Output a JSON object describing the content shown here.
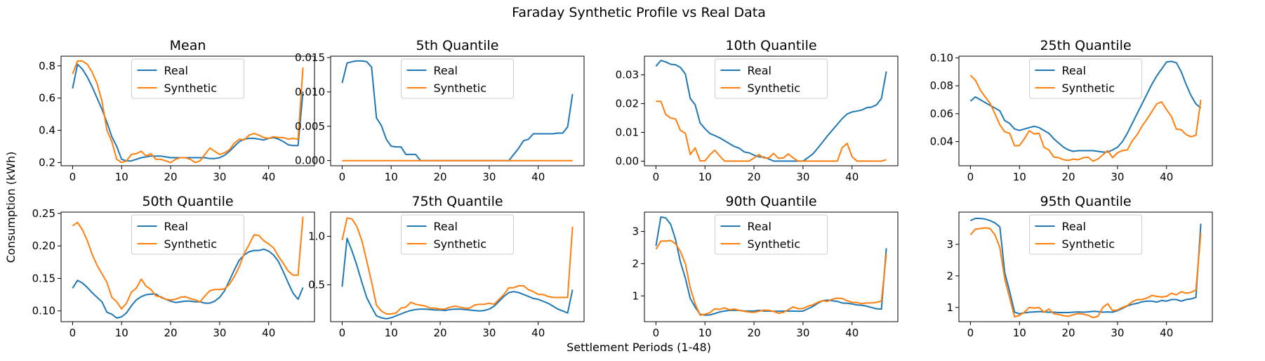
{
  "figure": {
    "suptitle": "Faraday Synthetic Profile vs Real Data",
    "xlabel": "Settlement Periods (1-48)",
    "ylabel": "Consumption (kWh)"
  },
  "colors": {
    "real": "#1f77b4",
    "synthetic": "#ff7f0e"
  },
  "chart_data": [
    {
      "type": "line",
      "title": "Mean",
      "xlim": [
        -2.35,
        49.35
      ],
      "ylim": [
        0.18,
        0.86
      ],
      "xticks": [
        0,
        10,
        20,
        30,
        40
      ],
      "yticks": [
        0.2,
        0.4,
        0.6,
        0.8
      ],
      "ytick_labels": [
        "0.2",
        "0.4",
        "0.6",
        "0.8"
      ],
      "legend": "upper center",
      "series": [
        {
          "name": "Real",
          "values": [
            0.66,
            0.81,
            0.78,
            0.73,
            0.67,
            0.6,
            0.53,
            0.45,
            0.36,
            0.3,
            0.22,
            0.21,
            0.21,
            0.22,
            0.23,
            0.235,
            0.24,
            0.24,
            0.24,
            0.235,
            0.23,
            0.23,
            0.23,
            0.23,
            0.23,
            0.23,
            0.23,
            0.23,
            0.225,
            0.225,
            0.23,
            0.245,
            0.27,
            0.3,
            0.33,
            0.345,
            0.35,
            0.35,
            0.345,
            0.34,
            0.35,
            0.355,
            0.345,
            0.33,
            0.31,
            0.305,
            0.305,
            0.64
          ]
        },
        {
          "name": "Synthetic",
          "values": [
            0.75,
            0.83,
            0.83,
            0.81,
            0.76,
            0.69,
            0.58,
            0.4,
            0.33,
            0.22,
            0.2,
            0.21,
            0.25,
            0.255,
            0.27,
            0.24,
            0.255,
            0.22,
            0.22,
            0.21,
            0.2,
            0.22,
            0.23,
            0.23,
            0.22,
            0.2,
            0.21,
            0.25,
            0.29,
            0.27,
            0.25,
            0.26,
            0.28,
            0.32,
            0.345,
            0.34,
            0.37,
            0.38,
            0.37,
            0.355,
            0.35,
            0.36,
            0.355,
            0.355,
            0.345,
            0.35,
            0.345,
            0.79
          ]
        }
      ]
    },
    {
      "type": "line",
      "title": "5th Quantile",
      "xlim": [
        -2.35,
        49.35
      ],
      "ylim": [
        -0.00075,
        0.0152
      ],
      "xticks": [
        0,
        10,
        20,
        30,
        40
      ],
      "yticks": [
        0.0,
        0.005,
        0.01,
        0.015
      ],
      "ytick_labels": [
        "0.000",
        "0.005",
        "0.010",
        "0.015"
      ],
      "legend": "upper center",
      "series": [
        {
          "name": "Real",
          "values": [
            0.0113,
            0.0142,
            0.0144,
            0.0145,
            0.0145,
            0.0144,
            0.0136,
            0.0062,
            0.0051,
            0.0031,
            0.0021,
            0.002,
            0.002,
            0.0009,
            0.0009,
            0.0009,
            0.0,
            0.0,
            0.0,
            0.0,
            0.0,
            0.0,
            0.0,
            0.0,
            0.0,
            0.0,
            0.0,
            0.0,
            0.0,
            0.0,
            0.0,
            0.0,
            0.0,
            0.0,
            0.0,
            0.0009,
            0.0018,
            0.0029,
            0.0031,
            0.0039,
            0.0039,
            0.0039,
            0.0039,
            0.0039,
            0.004,
            0.004,
            0.0049,
            0.0097
          ]
        },
        {
          "name": "Synthetic",
          "values": [
            0.0,
            0.0,
            0.0,
            0.0,
            0.0,
            0.0,
            0.0,
            0.0,
            0.0,
            0.0,
            0.0,
            0.0,
            0.0,
            0.0,
            0.0,
            0.0,
            0.0,
            0.0,
            0.0,
            0.0,
            0.0,
            0.0,
            0.0,
            0.0,
            0.0,
            0.0,
            0.0,
            0.0,
            0.0,
            0.0,
            0.0,
            0.0,
            0.0,
            0.0,
            0.0,
            0.0,
            0.0,
            0.0,
            0.0,
            0.0,
            0.0,
            0.0,
            0.0,
            0.0,
            0.0,
            0.0,
            0.0,
            0.0
          ]
        }
      ]
    },
    {
      "type": "line",
      "title": "10th Quantile",
      "xlim": [
        -2.35,
        49.35
      ],
      "ylim": [
        -0.0016,
        0.0365
      ],
      "xticks": [
        0,
        10,
        20,
        30,
        40
      ],
      "yticks": [
        0.0,
        0.01,
        0.02,
        0.03
      ],
      "ytick_labels": [
        "0.00",
        "0.01",
        "0.02",
        "0.03"
      ],
      "legend": "upper center",
      "series": [
        {
          "name": "Real",
          "values": [
            0.033,
            0.035,
            0.0345,
            0.0337,
            0.0335,
            0.0326,
            0.0303,
            0.0218,
            0.0196,
            0.0133,
            0.0113,
            0.0096,
            0.0089,
            0.0081,
            0.0071,
            0.0061,
            0.0051,
            0.0045,
            0.0032,
            0.0029,
            0.0021,
            0.0015,
            0.0014,
            0.0008,
            0.0,
            0.0,
            0.0,
            0.0,
            0.0,
            0.0,
            0.0,
            0.0012,
            0.0025,
            0.0045,
            0.0066,
            0.0088,
            0.0108,
            0.0128,
            0.0148,
            0.0164,
            0.0171,
            0.0174,
            0.0178,
            0.0186,
            0.0188,
            0.0196,
            0.0218,
            0.0312
          ]
        },
        {
          "name": "Synthetic",
          "values": [
            0.0208,
            0.0208,
            0.0162,
            0.015,
            0.0147,
            0.0107,
            0.0097,
            0.0023,
            0.0046,
            0.0001,
            0.0001,
            0.0022,
            0.0038,
            0.0018,
            0.0,
            0.0,
            0.0,
            0.0,
            0.0,
            0.0,
            0.0011,
            0.0023,
            0.0011,
            0.0011,
            0.0027,
            0.001,
            0.0011,
            0.0025,
            0.0011,
            0.0,
            0.0,
            0.0,
            0.0,
            0.0,
            0.0,
            0.0,
            0.0,
            0.0,
            0.0047,
            0.0062,
            0.0016,
            0.0,
            0.0,
            0.0,
            0.0,
            0.0,
            0.0,
            0.0005
          ]
        }
      ]
    },
    {
      "type": "line",
      "title": "25th Quantile",
      "xlim": [
        -2.35,
        49.35
      ],
      "ylim": [
        0.0227,
        0.1012
      ],
      "xticks": [
        0,
        10,
        20,
        30,
        40
      ],
      "yticks": [
        0.04,
        0.06,
        0.08,
        0.1
      ],
      "ytick_labels": [
        "0.04",
        "0.06",
        "0.08",
        "0.10"
      ],
      "legend": "upper center",
      "series": [
        {
          "name": "Real",
          "values": [
            0.069,
            0.072,
            0.07,
            0.068,
            0.066,
            0.064,
            0.062,
            0.055,
            0.053,
            0.049,
            0.048,
            0.049,
            0.05,
            0.051,
            0.05,
            0.048,
            0.046,
            0.042,
            0.039,
            0.036,
            0.034,
            0.033,
            0.0335,
            0.0335,
            0.0335,
            0.0335,
            0.033,
            0.0325,
            0.0325,
            0.034,
            0.036,
            0.04,
            0.046,
            0.053,
            0.06,
            0.067,
            0.074,
            0.081,
            0.087,
            0.092,
            0.097,
            0.0975,
            0.0965,
            0.09,
            0.081,
            0.073,
            0.067,
            0.064
          ]
        },
        {
          "name": "Synthetic",
          "values": [
            0.0875,
            0.084,
            0.077,
            0.072,
            0.0675,
            0.06,
            0.052,
            0.047,
            0.046,
            0.037,
            0.0372,
            0.042,
            0.0478,
            0.0455,
            0.046,
            0.036,
            0.034,
            0.029,
            0.0285,
            0.027,
            0.0265,
            0.0275,
            0.027,
            0.0285,
            0.0288,
            0.026,
            0.0275,
            0.0305,
            0.0335,
            0.0285,
            0.032,
            0.0336,
            0.034,
            0.0405,
            0.045,
            0.051,
            0.056,
            0.0615,
            0.067,
            0.0685,
            0.063,
            0.058,
            0.049,
            0.0485,
            0.045,
            0.0435,
            0.0445,
            0.07
          ]
        }
      ]
    },
    {
      "type": "line",
      "title": "50th Quantile",
      "xlim": [
        -2.35,
        49.35
      ],
      "ylim": [
        0.0835,
        0.252
      ],
      "xticks": [
        0,
        10,
        20,
        30,
        40
      ],
      "yticks": [
        0.1,
        0.15,
        0.2,
        0.25
      ],
      "ytick_labels": [
        "0.10",
        "0.15",
        "0.20",
        "0.25"
      ],
      "legend": "upper center",
      "series": [
        {
          "name": "Real",
          "values": [
            0.135,
            0.147,
            0.143,
            0.136,
            0.128,
            0.121,
            0.114,
            0.098,
            0.095,
            0.089,
            0.091,
            0.097,
            0.108,
            0.117,
            0.122,
            0.125,
            0.126,
            0.126,
            0.121,
            0.118,
            0.115,
            0.113,
            0.114,
            0.115,
            0.115,
            0.114,
            0.114,
            0.112,
            0.112,
            0.115,
            0.121,
            0.131,
            0.147,
            0.163,
            0.178,
            0.186,
            0.191,
            0.193,
            0.193,
            0.195,
            0.192,
            0.186,
            0.176,
            0.16,
            0.143,
            0.127,
            0.118,
            0.136
          ]
        },
        {
          "name": "Synthetic",
          "values": [
            0.231,
            0.236,
            0.225,
            0.208,
            0.187,
            0.17,
            0.157,
            0.144,
            0.121,
            0.114,
            0.103,
            0.112,
            0.129,
            0.135,
            0.149,
            0.138,
            0.133,
            0.123,
            0.122,
            0.118,
            0.117,
            0.118,
            0.121,
            0.122,
            0.119,
            0.117,
            0.114,
            0.123,
            0.131,
            0.133,
            0.133,
            0.134,
            0.141,
            0.153,
            0.168,
            0.188,
            0.202,
            0.217,
            0.216,
            0.208,
            0.203,
            0.197,
            0.184,
            0.173,
            0.161,
            0.155,
            0.155,
            0.245
          ]
        }
      ]
    },
    {
      "type": "line",
      "title": "75th Quantile",
      "xlim": [
        -2.35,
        49.35
      ],
      "ylim": [
        0.12,
        1.25
      ],
      "xticks": [
        0,
        10,
        20,
        30,
        40
      ],
      "yticks": [
        0.5,
        1.0
      ],
      "ytick_labels": [
        "0.5",
        "1.0"
      ],
      "legend": "upper center",
      "series": [
        {
          "name": "Real",
          "values": [
            0.48,
            0.98,
            0.85,
            0.7,
            0.53,
            0.37,
            0.27,
            0.18,
            0.16,
            0.15,
            0.16,
            0.18,
            0.2,
            0.22,
            0.235,
            0.245,
            0.25,
            0.25,
            0.245,
            0.24,
            0.24,
            0.235,
            0.245,
            0.25,
            0.25,
            0.245,
            0.24,
            0.235,
            0.23,
            0.235,
            0.25,
            0.28,
            0.33,
            0.38,
            0.42,
            0.43,
            0.42,
            0.4,
            0.38,
            0.36,
            0.35,
            0.33,
            0.31,
            0.28,
            0.25,
            0.23,
            0.21,
            0.45
          ]
        },
        {
          "name": "Synthetic",
          "values": [
            0.96,
            1.19,
            1.18,
            1.1,
            0.96,
            0.75,
            0.53,
            0.29,
            0.23,
            0.2,
            0.2,
            0.21,
            0.26,
            0.27,
            0.32,
            0.3,
            0.29,
            0.28,
            0.26,
            0.26,
            0.25,
            0.25,
            0.27,
            0.28,
            0.27,
            0.26,
            0.26,
            0.29,
            0.3,
            0.3,
            0.31,
            0.3,
            0.35,
            0.4,
            0.47,
            0.47,
            0.49,
            0.49,
            0.45,
            0.43,
            0.4,
            0.4,
            0.38,
            0.37,
            0.37,
            0.37,
            0.37,
            1.1
          ]
        }
      ]
    },
    {
      "type": "line",
      "title": "90th Quantile",
      "xlim": [
        -2.35,
        49.35
      ],
      "ylim": [
        0.2,
        3.6
      ],
      "xticks": [
        0,
        10,
        20,
        30,
        40
      ],
      "yticks": [
        1,
        2,
        3
      ],
      "ytick_labels": [
        "1",
        "2",
        "3"
      ],
      "legend": "upper center",
      "series": [
        {
          "name": "Real",
          "values": [
            2.55,
            3.45,
            3.42,
            3.22,
            2.75,
            2.05,
            1.55,
            0.92,
            0.65,
            0.43,
            0.4,
            0.41,
            0.45,
            0.5,
            0.53,
            0.55,
            0.55,
            0.55,
            0.53,
            0.53,
            0.53,
            0.55,
            0.53,
            0.53,
            0.52,
            0.52,
            0.53,
            0.53,
            0.53,
            0.52,
            0.53,
            0.6,
            0.67,
            0.77,
            0.85,
            0.87,
            0.85,
            0.83,
            0.78,
            0.77,
            0.75,
            0.72,
            0.71,
            0.68,
            0.64,
            0.6,
            0.59,
            2.48
          ]
        },
        {
          "name": "Synthetic",
          "values": [
            2.45,
            2.7,
            2.7,
            2.72,
            2.62,
            2.38,
            2.0,
            1.25,
            0.75,
            0.4,
            0.43,
            0.48,
            0.6,
            0.58,
            0.63,
            0.57,
            0.59,
            0.55,
            0.52,
            0.5,
            0.49,
            0.52,
            0.56,
            0.55,
            0.52,
            0.46,
            0.49,
            0.57,
            0.66,
            0.6,
            0.61,
            0.68,
            0.72,
            0.8,
            0.85,
            0.83,
            0.9,
            0.93,
            0.92,
            0.85,
            0.8,
            0.79,
            0.76,
            0.78,
            0.78,
            0.8,
            0.84,
            2.3
          ]
        }
      ]
    },
    {
      "type": "line",
      "title": "95th Quantile",
      "xlim": [
        -2.35,
        49.35
      ],
      "ylim": [
        0.55,
        4.02
      ],
      "xticks": [
        0,
        10,
        20,
        30,
        40
      ],
      "yticks": [
        1,
        2,
        3
      ],
      "ytick_labels": [
        "1",
        "2",
        "3"
      ],
      "legend": "upper center",
      "series": [
        {
          "name": "Real",
          "values": [
            3.75,
            3.82,
            3.82,
            3.8,
            3.75,
            3.68,
            3.55,
            2.1,
            1.5,
            0.85,
            0.8,
            0.83,
            0.85,
            0.86,
            0.87,
            0.86,
            0.85,
            0.85,
            0.84,
            0.84,
            0.84,
            0.85,
            0.86,
            0.85,
            0.86,
            0.88,
            0.87,
            0.85,
            0.86,
            0.85,
            0.9,
            0.97,
            1.05,
            1.1,
            1.13,
            1.18,
            1.2,
            1.2,
            1.17,
            1.22,
            1.2,
            1.25,
            1.25,
            1.2,
            1.25,
            1.27,
            1.32,
            3.65
          ]
        },
        {
          "name": "Synthetic",
          "values": [
            3.3,
            3.48,
            3.5,
            3.52,
            3.5,
            3.3,
            2.9,
            1.9,
            1.3,
            0.7,
            0.75,
            0.85,
            1.0,
            0.98,
            1.0,
            0.85,
            0.95,
            0.8,
            0.78,
            0.74,
            0.72,
            0.77,
            0.81,
            0.79,
            0.75,
            0.68,
            0.72,
            1.0,
            1.12,
            0.9,
            0.92,
            1.0,
            1.06,
            1.18,
            1.25,
            1.25,
            1.3,
            1.38,
            1.35,
            1.33,
            1.35,
            1.45,
            1.4,
            1.5,
            1.45,
            1.48,
            1.55,
            3.35
          ]
        }
      ]
    }
  ]
}
